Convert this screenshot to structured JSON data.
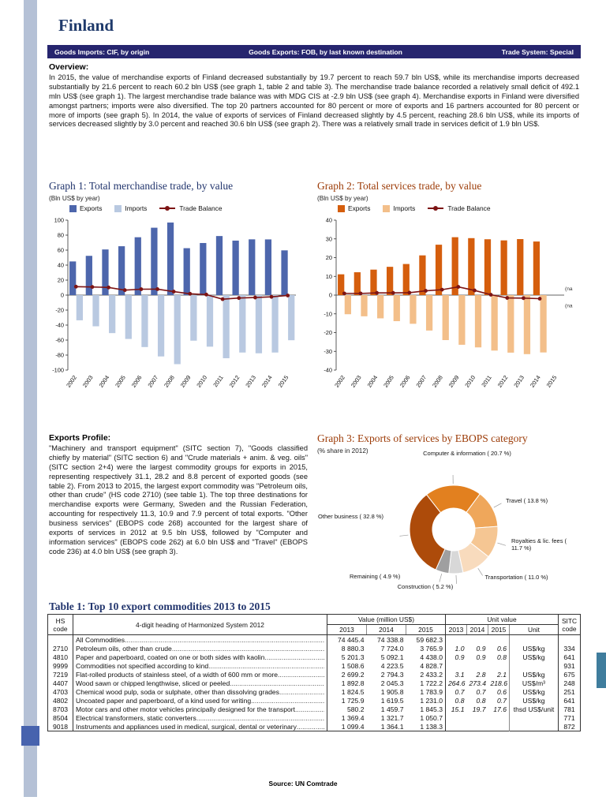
{
  "page": {
    "title": "Finland"
  },
  "topbar": {
    "imports_note": "Goods Imports: CIF, by origin",
    "exports_note": "Goods Exports: FOB, by last known destination",
    "trade_system": "Trade System: Special"
  },
  "overview": {
    "heading": "Overview:",
    "text": "In 2015, the value of merchandise exports of Finland decreased substantially by 19.7 percent to reach 59.7 bln US$, while its merchandise imports decreased substantially by 21.6 percent to reach 60.2 bln US$ (see graph 1, table 2 and table 3). The merchandise trade balance recorded a relatively small deficit of 492.1 mln US$ (see graph 1). The largest merchandise trade balance was with MDG CIS at -2.9 bln US$ (see graph 4). Merchandise exports in Finland were diversified amongst partners; imports were also diversified. The top 20 partners accounted for 80 percent or more of exports and 16 partners accounted for 80 percent or more of imports (see graph 5). In 2014, the value of exports of services of Finland decreased slightly by 4.5 percent, reaching 28.6 bln US$, while its imports of services decreased slightly by 3.0 percent and reached 30.6 bln US$ (see graph 2). There was a relatively small trade in services deficit of 1.9 bln US$."
  },
  "exports_profile": {
    "heading": "Exports Profile:",
    "text": "\"Machinery and transport equipment\" (SITC section 7), \"Goods classified chiefly by material\" (SITC section 6) and \"Crude materials + anim. & veg. oils\" (SITC section 2+4) were the largest commodity groups for exports in 2015, representing respectively 31.1, 28.2 and 8.8 percent of exported goods (see table 2). From 2013 to 2015, the largest export commodity was \"Petroleum oils, other than crude\" (HS code 2710) (see table 1). The top three destinations for merchandise exports were Germany, Sweden and the Russian Federation, accounting for respectively 11.3, 10.9 and 7.9 percent of total exports. \"Other business services\" (EBOPS code 268) accounted for the largest share of exports of services in 2012 at 9.5 bln US$, followed by \"Computer and information services\" (EBOPS code 262) at 6.0 bln US$ and \"Travel\" (EBOPS code 236) at 4.0 bln US$ (see graph 3)."
  },
  "chart_data": [
    {
      "id": "graph1",
      "type": "bar",
      "title": "Graph 1: Total merchandise trade, by value",
      "subtitle": "(Bln US$ by year)",
      "categories": [
        "2002",
        "2003",
        "2004",
        "2005",
        "2006",
        "2007",
        "2008",
        "2009",
        "2010",
        "2011",
        "2012",
        "2013",
        "2014",
        "2015"
      ],
      "series": [
        {
          "name": "Exports",
          "type": "bar",
          "color": "#4d66ac",
          "values": [
            44.9,
            52.4,
            60.9,
            65.2,
            77.2,
            89.9,
            96.8,
            62.6,
            69.5,
            78.8,
            72.7,
            74.4,
            74.3,
            59.7
          ]
        },
        {
          "name": "Imports",
          "type": "bar",
          "color": "#b9c9e1",
          "values": [
            -33.6,
            -41.6,
            -50.7,
            -58.5,
            -69.3,
            -81.8,
            -92.1,
            -60.8,
            -68.8,
            -84.2,
            -76.6,
            -77.6,
            -76.6,
            -60.2
          ]
        },
        {
          "name": "Trade Balance",
          "type": "line",
          "color": "#7d1414",
          "values": [
            11.3,
            10.9,
            10.2,
            6.7,
            7.9,
            8.0,
            4.7,
            1.8,
            0.7,
            -5.4,
            -3.9,
            -3.2,
            -2.3,
            -0.5
          ]
        }
      ],
      "ylim": [
        -100,
        100
      ],
      "yticks": [
        100,
        80,
        60,
        40,
        20,
        0,
        -20,
        -40,
        -60,
        -80,
        -100
      ],
      "legend_position": "top",
      "grid": false
    },
    {
      "id": "graph2",
      "type": "bar",
      "title": "Graph 2: Total services trade, by value",
      "subtitle": "(Bln US$ by year)",
      "categories": [
        "2002",
        "2003",
        "2004",
        "2005",
        "2006",
        "2007",
        "2008",
        "2009",
        "2010",
        "2011",
        "2012",
        "2013",
        "2014",
        "2015"
      ],
      "series": [
        {
          "name": "Exports",
          "type": "bar",
          "color": "#d55e0d",
          "values": [
            11.1,
            12.2,
            13.6,
            15.1,
            16.6,
            21.2,
            26.9,
            30.9,
            30.4,
            29.8,
            29.2,
            29.9,
            28.6,
            null
          ]
        },
        {
          "name": "Imports",
          "type": "bar",
          "color": "#f3bf8a",
          "values": [
            -10.2,
            -11.3,
            -12.4,
            -13.9,
            -15.3,
            -18.9,
            -24.0,
            -26.5,
            -27.9,
            -29.6,
            -30.7,
            -31.5,
            -30.6,
            null
          ]
        },
        {
          "name": "Trade Balance",
          "type": "line",
          "color": "#7d1414",
          "values": [
            0.9,
            0.9,
            1.2,
            1.2,
            1.3,
            2.3,
            2.9,
            4.4,
            2.5,
            0.2,
            -1.5,
            -1.6,
            -1.9,
            null
          ]
        }
      ],
      "ylim": [
        -40,
        40
      ],
      "yticks": [
        40,
        30,
        20,
        10,
        0,
        -10,
        -20,
        -30,
        -40
      ],
      "annotations": [
        {
          "text": "(na",
          "y": 2.5
        },
        {
          "text": "(na",
          "y": -6.5
        }
      ],
      "legend_position": "top",
      "grid": false
    },
    {
      "id": "graph3",
      "type": "pie",
      "title": "Graph 3: Exports of services by EBOPS category",
      "subtitle": "(% share in 2012)",
      "start_angle_deg": -38,
      "slices": [
        {
          "label": "Computer & information",
          "display": "Computer & information ( 20.7 %)",
          "value": 20.7,
          "color": "#e2801f"
        },
        {
          "label": "Travel",
          "display": "Travel ( 13.8 %)",
          "value": 13.8,
          "color": "#efa75b"
        },
        {
          "label": "Royalties & lic. fees",
          "display": "Royalties & lic. fees ( 11.7 %)",
          "value": 11.7,
          "color": "#f5c693"
        },
        {
          "label": "Transportation",
          "display": "Transportation ( 11.0 %)",
          "value": 11.0,
          "color": "#f8dbbd"
        },
        {
          "label": "Construction",
          "display": "Construction ( 5.2 %)",
          "value": 5.2,
          "color": "#d8d8d8"
        },
        {
          "label": "Remaining",
          "display": "Remaining ( 4.9 %)",
          "value": 4.9,
          "color": "#9f9fa0"
        },
        {
          "label": "Other business",
          "display": "Other business ( 32.8 %)",
          "value": 32.8,
          "color": "#ad4b0a"
        }
      ]
    }
  ],
  "table1": {
    "title": "Table 1:  Top 10 export commodities 2013 to 2015",
    "headers": {
      "hs_line1": "HS",
      "hs_line2": "code",
      "heading": "4-digit heading of Harmonized System 2012",
      "value_group": "Value (million US$)",
      "unit_value_group": "Unit value",
      "years": [
        "2013",
        "2014",
        "2015"
      ],
      "unit": "Unit",
      "sitc_line1": "SITC",
      "sitc_line2": "code"
    },
    "rows": [
      {
        "hs": "",
        "desc": "All Commodities",
        "v": [
          "74 445.4",
          "74 338.8",
          "59 682.3"
        ],
        "uv": [
          "",
          "",
          ""
        ],
        "unit": "",
        "sitc": ""
      },
      {
        "hs": "2710",
        "desc": "Petroleum oils, other than crude",
        "v": [
          "8 880.3",
          "7 724.0",
          "3 765.9"
        ],
        "uv": [
          "1.0",
          "0.9",
          "0.6"
        ],
        "unit": "US$/kg",
        "sitc": "334"
      },
      {
        "hs": "4810",
        "desc": "Paper and paperboard, coated on one or both sides with kaolin",
        "v": [
          "5 201.3",
          "5 092.1",
          "4 438.0"
        ],
        "uv": [
          "0.9",
          "0.9",
          "0.8"
        ],
        "unit": "US$/kg",
        "sitc": "641"
      },
      {
        "hs": "9999",
        "desc": "Commodities not specified according to kind",
        "v": [
          "1 508.6",
          "4 223.5",
          "4 828.7"
        ],
        "uv": [
          "",
          "",
          ""
        ],
        "unit": "",
        "sitc": "931"
      },
      {
        "hs": "7219",
        "desc": "Flat-rolled products of stainless steel, of a width of 600 mm or more",
        "v": [
          "2 699.2",
          "2 794.3",
          "2 433.2"
        ],
        "uv": [
          "3.1",
          "2.8",
          "2.1"
        ],
        "unit": "US$/kg",
        "sitc": "675"
      },
      {
        "hs": "4407",
        "desc": "Wood sawn or chipped lengthwise, sliced or peeled",
        "v": [
          "1 892.8",
          "2 045.3",
          "1 722.2"
        ],
        "uv": [
          "264.6",
          "273.4",
          "218.6"
        ],
        "unit": "US$/m³",
        "sitc": "248"
      },
      {
        "hs": "4703",
        "desc": "Chemical wood pulp, soda or sulphate, other than dissolving grades",
        "v": [
          "1 824.5",
          "1 905.8",
          "1 783.9"
        ],
        "uv": [
          "0.7",
          "0.7",
          "0.6"
        ],
        "unit": "US$/kg",
        "sitc": "251"
      },
      {
        "hs": "4802",
        "desc": "Uncoated paper and paperboard, of a kind used for writing",
        "v": [
          "1 725.9",
          "1 619.5",
          "1 231.0"
        ],
        "uv": [
          "0.8",
          "0.8",
          "0.7"
        ],
        "unit": "US$/kg",
        "sitc": "641"
      },
      {
        "hs": "8703",
        "desc": "Motor cars and other motor vehicles principally designed for the transport",
        "v": [
          "580.2",
          "1 459.7",
          "1 845.3"
        ],
        "uv": [
          "15.1",
          "19.7",
          "17.6"
        ],
        "unit": "thsd US$/unit",
        "sitc": "781"
      },
      {
        "hs": "8504",
        "desc": "Electrical transformers, static converters",
        "v": [
          "1 369.4",
          "1 321.7",
          "1 050.7"
        ],
        "uv": [
          "",
          "",
          ""
        ],
        "unit": "",
        "sitc": "771"
      },
      {
        "hs": "9018",
        "desc": "Instruments and appliances used in medical, surgical, dental or veterinary",
        "v": [
          "1 099.4",
          "1 364.1",
          "1 138.3"
        ],
        "uv": [
          "",
          "",
          ""
        ],
        "unit": "",
        "sitc": "872"
      }
    ]
  },
  "footer": {
    "source": "Source: UN Comtrade"
  }
}
